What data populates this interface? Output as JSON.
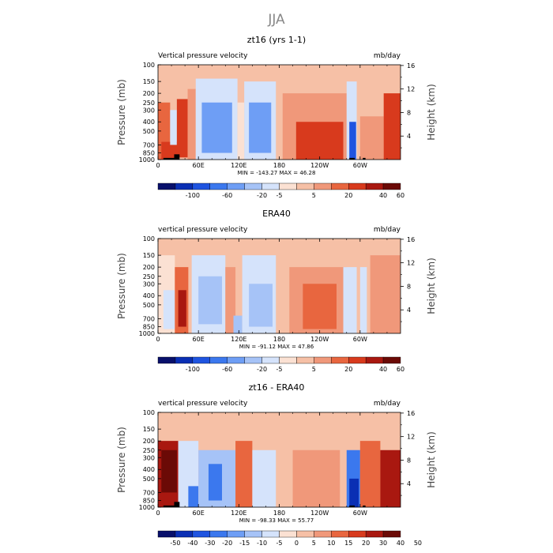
{
  "figure": {
    "title": "JJA",
    "colors_blue_to_red": [
      "#08106b",
      "#0a2fb4",
      "#1f54e0",
      "#3b78ee",
      "#6e9ef5",
      "#a6c3f7",
      "#d5e3fb",
      "#fbe1d3",
      "#f6c0a6",
      "#f0987a",
      "#e8663f",
      "#d83a1d",
      "#a91810",
      "#6b0a06"
    ]
  },
  "chart_data": [
    {
      "type": "heatmap",
      "title": "zt16 (yrs 1-1)",
      "left_label": "Vertical pressure velocity",
      "right_label": "mb/day",
      "ylabel": "Pressure (mb)",
      "y2label": "Height (km)",
      "x_ticks": [
        "0",
        "60E",
        "120E",
        "180",
        "120W",
        "60W"
      ],
      "x_tick_lon": [
        0,
        60,
        120,
        180,
        240,
        300
      ],
      "xlim": [
        0,
        360
      ],
      "y_ticks": [
        "100",
        "150",
        "200",
        "250",
        "300",
        "400",
        "500",
        "700",
        "850",
        "1000"
      ],
      "y_tick_p": [
        100,
        150,
        200,
        250,
        300,
        400,
        500,
        700,
        850,
        1000
      ],
      "ylim": [
        1000,
        100
      ],
      "y2_ticks": [
        "16",
        "12",
        "8",
        "4"
      ],
      "y2_tick_km": [
        16,
        12,
        8,
        4
      ],
      "stats": "MIN = -143.27   MAX =  46.28",
      "colorbar_labels": [
        "-100",
        "-60",
        "-20",
        "-5",
        "5",
        "20",
        "40",
        "60"
      ],
      "colorbar_label_bounds": [
        1,
        3,
        5,
        6,
        8,
        10,
        12,
        13
      ],
      "regions": [
        {
          "lon": [
            0,
            18
          ],
          "p": [
            250,
            1000
          ],
          "value": 20
        },
        {
          "lon": [
            5,
            30
          ],
          "p": [
            650,
            1000
          ],
          "value": 30
        },
        {
          "lon": [
            18,
            28
          ],
          "p": [
            300,
            700
          ],
          "value": -10
        },
        {
          "lon": [
            28,
            44
          ],
          "p": [
            230,
            950
          ],
          "value": 30
        },
        {
          "lon": [
            44,
            56
          ],
          "p": [
            180,
            1000
          ],
          "value": 5
        },
        {
          "lon": [
            56,
            118
          ],
          "p": [
            140,
            1000
          ],
          "value": -20
        },
        {
          "lon": [
            65,
            110
          ],
          "p": [
            250,
            850
          ],
          "value": -60
        },
        {
          "lon": [
            118,
            128
          ],
          "p": [
            250,
            1000
          ],
          "value": -5
        },
        {
          "lon": [
            128,
            175
          ],
          "p": [
            150,
            1000
          ],
          "value": -20
        },
        {
          "lon": [
            135,
            168
          ],
          "p": [
            250,
            850
          ],
          "value": -60
        },
        {
          "lon": [
            185,
            280
          ],
          "p": [
            200,
            1000
          ],
          "value": 10
        },
        {
          "lon": [
            205,
            275
          ],
          "p": [
            400,
            1000
          ],
          "value": 30
        },
        {
          "lon": [
            280,
            295
          ],
          "p": [
            150,
            1000
          ],
          "value": -20
        },
        {
          "lon": [
            284,
            294
          ],
          "p": [
            400,
            1000
          ],
          "value": -100
        },
        {
          "lon": [
            300,
            335
          ],
          "p": [
            350,
            1000
          ],
          "value": 10
        },
        {
          "lon": [
            335,
            360
          ],
          "p": [
            200,
            1000
          ],
          "value": 30
        }
      ],
      "topography": [
        {
          "lon": [
            8,
            30
          ],
          "p": [
            960,
            1000
          ]
        },
        {
          "lon": [
            24,
            32
          ],
          "p": [
            880,
            1000
          ]
        },
        {
          "lon": [
            284,
            292
          ],
          "p": [
            960,
            1000
          ]
        },
        {
          "lon": [
            304,
            308
          ],
          "p": [
            960,
            1000
          ]
        }
      ]
    },
    {
      "type": "heatmap",
      "title": "ERA40",
      "left_label": "vertical pressure velocity",
      "right_label": "mb/day",
      "ylabel": "Pressure (mb)",
      "y2label": "Height (km)",
      "x_ticks": [
        "0",
        "60E",
        "120E",
        "180",
        "120W",
        "60W"
      ],
      "x_tick_lon": [
        0,
        60,
        120,
        180,
        240,
        300
      ],
      "xlim": [
        0,
        360
      ],
      "y_ticks": [
        "100",
        "150",
        "200",
        "250",
        "300",
        "400",
        "500",
        "700",
        "850",
        "1000"
      ],
      "y_tick_p": [
        100,
        150,
        200,
        250,
        300,
        400,
        500,
        700,
        850,
        1000
      ],
      "ylim": [
        1000,
        100
      ],
      "y2_ticks": [
        "16",
        "12",
        "8",
        "4"
      ],
      "y2_tick_km": [
        16,
        12,
        8,
        4
      ],
      "stats": "MIN =  -91.12   MAX =  47.86",
      "colorbar_labels": [
        "-100",
        "-60",
        "-20",
        "-5",
        "5",
        "20",
        "40",
        "60"
      ],
      "colorbar_label_bounds": [
        1,
        3,
        5,
        6,
        8,
        10,
        12,
        13
      ],
      "regions": [
        {
          "lon": [
            0,
            25
          ],
          "p": [
            150,
            1000
          ],
          "value": -5
        },
        {
          "lon": [
            8,
            25
          ],
          "p": [
            350,
            900
          ],
          "value": -20
        },
        {
          "lon": [
            25,
            45
          ],
          "p": [
            200,
            1000
          ],
          "value": 20
        },
        {
          "lon": [
            30,
            42
          ],
          "p": [
            350,
            850
          ],
          "value": 40
        },
        {
          "lon": [
            50,
            100
          ],
          "p": [
            150,
            1000
          ],
          "value": -20
        },
        {
          "lon": [
            60,
            95
          ],
          "p": [
            250,
            800
          ],
          "value": -40
        },
        {
          "lon": [
            100,
            115
          ],
          "p": [
            200,
            1000
          ],
          "value": 5
        },
        {
          "lon": [
            112,
            125
          ],
          "p": [
            650,
            1000
          ],
          "value": -40
        },
        {
          "lon": [
            125,
            175
          ],
          "p": [
            150,
            1000
          ],
          "value": -20
        },
        {
          "lon": [
            135,
            170
          ],
          "p": [
            300,
            850
          ],
          "value": -40
        },
        {
          "lon": [
            195,
            280
          ],
          "p": [
            200,
            1000
          ],
          "value": 10
        },
        {
          "lon": [
            215,
            265
          ],
          "p": [
            300,
            900
          ],
          "value": 20
        },
        {
          "lon": [
            275,
            295
          ],
          "p": [
            200,
            1000
          ],
          "value": -20
        },
        {
          "lon": [
            300,
            310
          ],
          "p": [
            200,
            1000
          ],
          "value": -10
        },
        {
          "lon": [
            315,
            360
          ],
          "p": [
            150,
            1000
          ],
          "value": 10
        }
      ],
      "topography": []
    },
    {
      "type": "heatmap",
      "title": "zt16 - ERA40",
      "left_label": "vertical pressure velocity",
      "right_label": "mb/day",
      "ylabel": "Pressure (mb)",
      "y2label": "Height (km)",
      "x_ticks": [
        "0",
        "60E",
        "120E",
        "180",
        "120W",
        "60W"
      ],
      "x_tick_lon": [
        0,
        60,
        120,
        180,
        240,
        300
      ],
      "xlim": [
        0,
        360
      ],
      "y_ticks": [
        "100",
        "150",
        "200",
        "250",
        "300",
        "400",
        "500",
        "700",
        "850",
        "1000"
      ],
      "y_tick_p": [
        100,
        150,
        200,
        250,
        300,
        400,
        500,
        700,
        850,
        1000
      ],
      "ylim": [
        1000,
        100
      ],
      "y2_ticks": [
        "16",
        "12",
        "8",
        "4"
      ],
      "y2_tick_km": [
        16,
        12,
        8,
        4
      ],
      "stats": "MIN =  -98.33   MAX =  55.77",
      "colorbar_labels": [
        "-50",
        "-40",
        "-30",
        "-20",
        "-15",
        "-10",
        "-5",
        "0",
        "5",
        "10",
        "15",
        "20",
        "30",
        "40",
        "50"
      ],
      "colorbar_label_bounds": [
        0,
        1,
        2,
        3,
        4,
        5,
        6,
        7,
        8,
        9,
        10,
        11,
        12,
        13,
        14
      ],
      "regions": [
        {
          "lon": [
            0,
            30
          ],
          "p": [
            200,
            1000
          ],
          "value": 20
        },
        {
          "lon": [
            5,
            28
          ],
          "p": [
            250,
            700
          ],
          "value": 40
        },
        {
          "lon": [
            30,
            60
          ],
          "p": [
            200,
            1000
          ],
          "value": -10
        },
        {
          "lon": [
            45,
            60
          ],
          "p": [
            600,
            1000
          ],
          "value": -30
        },
        {
          "lon": [
            60,
            115
          ],
          "p": [
            250,
            1000
          ],
          "value": -15
        },
        {
          "lon": [
            75,
            95
          ],
          "p": [
            350,
            850
          ],
          "value": -30
        },
        {
          "lon": [
            115,
            140
          ],
          "p": [
            200,
            1000
          ],
          "value": 10
        },
        {
          "lon": [
            140,
            175
          ],
          "p": [
            250,
            1000
          ],
          "value": -10
        },
        {
          "lon": [
            200,
            270
          ],
          "p": [
            250,
            1000
          ],
          "value": 5
        },
        {
          "lon": [
            280,
            300
          ],
          "p": [
            250,
            1000
          ],
          "value": -30
        },
        {
          "lon": [
            284,
            298
          ],
          "p": [
            500,
            1000
          ],
          "value": -50
        },
        {
          "lon": [
            300,
            330
          ],
          "p": [
            200,
            1000
          ],
          "value": 10
        },
        {
          "lon": [
            330,
            360
          ],
          "p": [
            250,
            1000
          ],
          "value": 20
        }
      ],
      "topography": [
        {
          "lon": [
            8,
            30
          ],
          "p": [
            960,
            1000
          ]
        },
        {
          "lon": [
            24,
            32
          ],
          "p": [
            880,
            1000
          ]
        },
        {
          "lon": [
            284,
            292
          ],
          "p": [
            960,
            1000
          ]
        },
        {
          "lon": [
            304,
            308
          ],
          "p": [
            960,
            1000
          ]
        }
      ]
    }
  ]
}
